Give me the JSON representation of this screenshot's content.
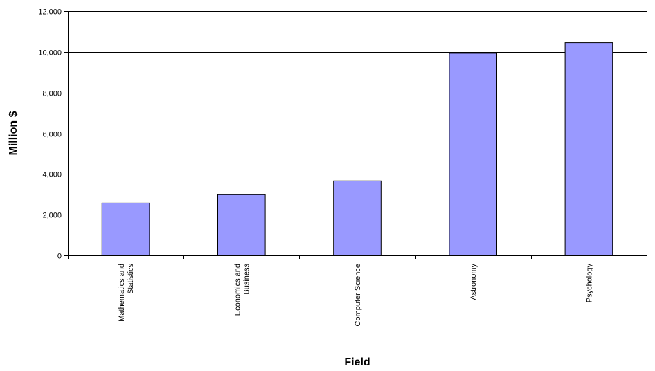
{
  "chart_data": {
    "type": "bar",
    "title": "",
    "xlabel": "Field",
    "ylabel": "Million $",
    "categories": [
      [
        "Mathematics and",
        "Statistics"
      ],
      [
        "Economics and",
        "Business"
      ],
      [
        "Computer Science"
      ],
      [
        "Astronomy"
      ],
      [
        "Psychology"
      ]
    ],
    "values": [
      2570,
      2980,
      3660,
      9930,
      10450
    ],
    "ylim": [
      0,
      12000
    ],
    "yticks": [
      0,
      2000,
      4000,
      6000,
      8000,
      10000,
      12000
    ],
    "ytick_labels": [
      "0",
      "2,000",
      "4,000",
      "6,000",
      "8,000",
      "10,000",
      "12,000"
    ],
    "grid": true,
    "bar_color": "#9999ff",
    "bar_edge_color": "#000000"
  }
}
